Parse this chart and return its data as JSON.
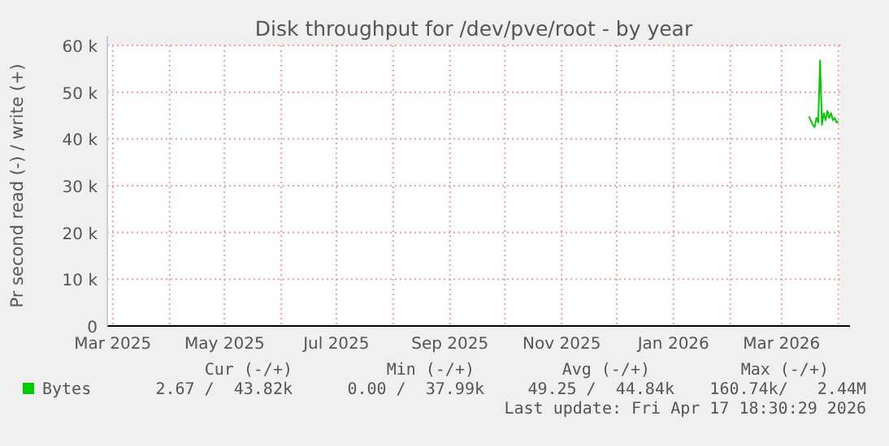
{
  "chart_data": {
    "type": "line",
    "title": "Disk throughput for /dev/pve/root - by year",
    "ylabel": "Pr second read (-) / write (+)",
    "x": [
      "2026-03-16",
      "2026-03-18",
      "2026-03-19",
      "2026-03-20",
      "2026-03-21",
      "2026-03-22",
      "2026-03-23",
      "2026-03-24",
      "2026-03-25",
      "2026-03-26",
      "2026-03-27",
      "2026-03-28",
      "2026-03-29",
      "2026-03-30",
      "2026-03-31",
      "2026-04-01"
    ],
    "series": [
      {
        "name": "Bytes",
        "color": "#00cc00",
        "values": [
          44800,
          43000,
          42500,
          44500,
          43500,
          56800,
          43000,
          45500,
          44000,
          46000,
          44500,
          45500,
          44000,
          44500,
          43500,
          43800
        ]
      }
    ],
    "xlim": [
      "2025-02-26",
      "2026-04-02"
    ],
    "xticks": [
      {
        "value": "2025-03-01",
        "label": "Mar 2025"
      },
      {
        "value": "2025-04-01",
        "label": null
      },
      {
        "value": "2025-05-01",
        "label": "May 2025"
      },
      {
        "value": "2025-06-01",
        "label": null
      },
      {
        "value": "2025-07-01",
        "label": "Jul 2025"
      },
      {
        "value": "2025-08-01",
        "label": null
      },
      {
        "value": "2025-09-01",
        "label": "Sep 2025"
      },
      {
        "value": "2025-10-01",
        "label": null
      },
      {
        "value": "2025-11-01",
        "label": "Nov 2025"
      },
      {
        "value": "2025-12-01",
        "label": null
      },
      {
        "value": "2026-01-01",
        "label": "Jan 2026"
      },
      {
        "value": "2026-02-01",
        "label": null
      },
      {
        "value": "2026-03-01",
        "label": "Mar 2026"
      },
      {
        "value": "2026-04-01",
        "label": null
      }
    ],
    "ylim": [
      0,
      60000
    ],
    "yticks": [
      {
        "value": 0,
        "label": "0"
      },
      {
        "value": 10000,
        "label": "10 k"
      },
      {
        "value": 20000,
        "label": "20 k"
      },
      {
        "value": 30000,
        "label": "30 k"
      },
      {
        "value": 40000,
        "label": "40 k"
      },
      {
        "value": 50000,
        "label": "50 k"
      },
      {
        "value": 60000,
        "label": "60 k"
      }
    ],
    "grid": true,
    "legend": "bottom",
    "marker": "none",
    "line_style": "solid",
    "annotations": [
      "Cur (-/+)",
      "Min (-/+)",
      "Avg (-/+)",
      "Max (-/+)",
      "2.67 /  43.82k",
      "0.00 /  37.99k",
      "49.25 /  44.84k",
      "160.74k/   2.44M",
      "Last update: Fri Apr 17 18:30:29 2026"
    ]
  }
}
